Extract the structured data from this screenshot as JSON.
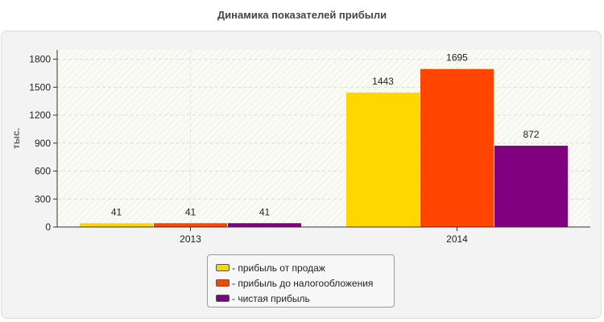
{
  "chart_data": {
    "type": "bar",
    "title": "Динамика показателей прибыли",
    "ylabel": "тыс.",
    "xlabel": "",
    "categories": [
      "2013",
      "2014"
    ],
    "ylim": [
      0,
      1900
    ],
    "yticks": [
      0,
      300,
      600,
      900,
      1200,
      1500,
      1800
    ],
    "grid": true,
    "legend_position": "bottom",
    "series": [
      {
        "name": "прибыль от продаж",
        "values": [
          41,
          1443
        ],
        "color": "#FFD700"
      },
      {
        "name": "прибыль до налогообложения",
        "values": [
          41,
          1695
        ],
        "color": "#FF4500"
      },
      {
        "name": "чистая прибыль",
        "values": [
          41,
          872
        ],
        "color": "#800080"
      }
    ]
  },
  "legend_prefix": "- "
}
